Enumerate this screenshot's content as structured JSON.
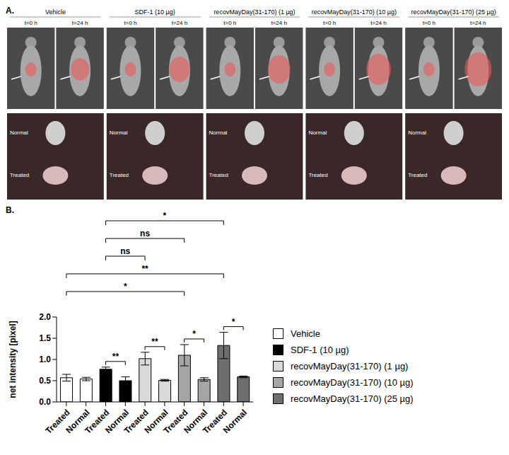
{
  "panel_a": {
    "label": "A.",
    "columns": [
      "Vehicle",
      "SDF-1 (10 µg)",
      "recovMayDay(31-170) (1 µg)",
      "recovMayDay(31-170) (10 µg)",
      "recovMayDay(31-170) (25 µg)"
    ],
    "times": [
      "t=0 h",
      "t=24 h"
    ],
    "organ_labels": [
      "Normal",
      "Treated"
    ]
  },
  "chart_data": {
    "type": "bar",
    "label": "B.",
    "y_label": "net intensity [pixel]",
    "categories": [
      "Treated",
      "Normal",
      "Treated",
      "Normal",
      "Treated",
      "Normal",
      "Treated",
      "Normal",
      "Treated",
      "Normal"
    ],
    "series": [
      {
        "name": "Vehicle",
        "color": "#ffffff",
        "values": [
          0.57,
          0.54,
          null,
          null,
          null,
          null,
          null,
          null,
          null,
          null
        ],
        "errors": [
          0.08,
          0.04,
          null,
          null,
          null,
          null,
          null,
          null,
          null,
          null
        ]
      },
      {
        "name": "SDF-1 (10 µg)",
        "color": "#000000",
        "values": [
          null,
          null,
          0.77,
          0.5,
          null,
          null,
          null,
          null,
          null,
          null
        ],
        "errors": [
          null,
          null,
          0.05,
          0.09,
          null,
          null,
          null,
          null,
          null,
          null
        ]
      },
      {
        "name": "recovMayDay(31-170) (1 µg)",
        "color": "#d9d9d9",
        "values": [
          null,
          null,
          null,
          null,
          1.02,
          0.51,
          null,
          null,
          null,
          null
        ],
        "errors": [
          null,
          null,
          null,
          null,
          0.15,
          0.02,
          null,
          null,
          null,
          null
        ]
      },
      {
        "name": "recovMayDay(31-170) (10 µg)",
        "color": "#a6a6a6",
        "values": [
          null,
          null,
          null,
          null,
          null,
          null,
          1.1,
          0.53,
          null,
          null
        ],
        "errors": [
          null,
          null,
          null,
          null,
          null,
          null,
          0.25,
          0.04,
          null,
          null
        ]
      },
      {
        "name": "recovMayDay(31-170) (25 µg)",
        "color": "#6e6e6e",
        "values": [
          null,
          null,
          null,
          null,
          null,
          null,
          null,
          null,
          1.33,
          0.59
        ],
        "errors": [
          null,
          null,
          null,
          null,
          null,
          null,
          null,
          null,
          0.31,
          0.02
        ]
      }
    ],
    "ylim": [
      0,
      2
    ],
    "yticks": [
      {
        "value": 0,
        "label": "0.0"
      },
      0.5,
      {
        "value": 1,
        "label": "1.0"
      },
      1.5,
      {
        "value": 2,
        "label": "2.0"
      }
    ],
    "annotations": [
      {
        "from": 2,
        "to": 8,
        "label": "*"
      },
      {
        "from": 2,
        "to": 6,
        "label": "ns"
      },
      {
        "from": 2,
        "to": 4,
        "label": "ns"
      },
      {
        "from": 0,
        "to": 8,
        "label": "**"
      },
      {
        "from": 0,
        "to": 6,
        "label": "*"
      },
      {
        "from": 2,
        "to": 3,
        "label": "**"
      },
      {
        "from": 4,
        "to": 5,
        "label": "**"
      },
      {
        "from": 6,
        "to": 7,
        "label": "*"
      },
      {
        "from": 8,
        "to": 9,
        "label": "*"
      }
    ],
    "legend": "right",
    "grid": false
  }
}
